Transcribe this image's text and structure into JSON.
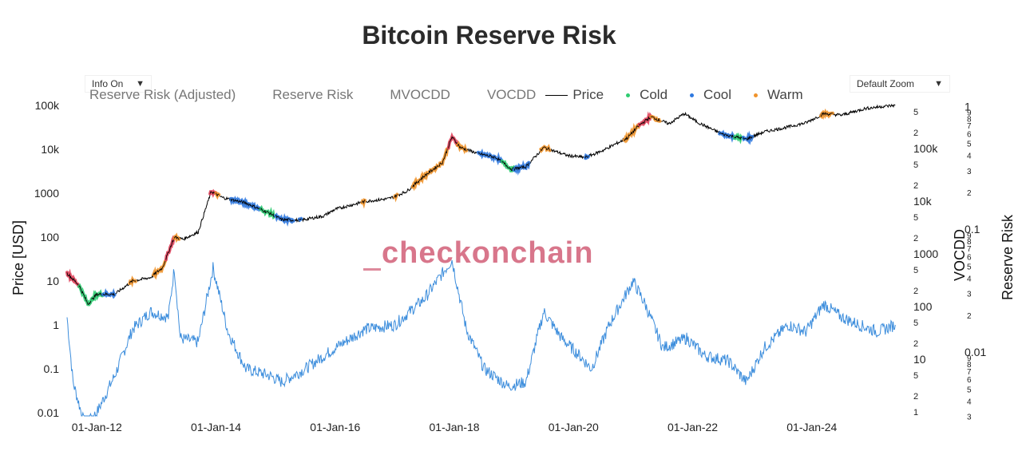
{
  "chart_data": {
    "type": "line",
    "title": "Bitcoin Reserve Risk",
    "y_left_label": "Price [USD]",
    "y_right1_label": "VOCDD",
    "y_right2_label": "Reserve Risk",
    "y_left_scale": "log",
    "y_left_ticks": [
      "0.01",
      "0.1",
      "1",
      "10",
      "100",
      "1000",
      "10k",
      "100k"
    ],
    "y_right1_major_ticks": [
      "10",
      "100",
      "1000",
      "10k",
      "100k"
    ],
    "y_right1_minor_ticks": [
      "1",
      "2",
      "5"
    ],
    "y_right2_major_ticks": [
      "0.01",
      "0.1",
      "1"
    ],
    "x_ticks": [
      "01-Jan-12",
      "01-Jan-14",
      "01-Jan-16",
      "01-Jan-18",
      "01-Jan-20",
      "01-Jan-22",
      "01-Jan-24"
    ],
    "legend_placement": "top",
    "grid": false,
    "series": [
      {
        "name": "Price",
        "color": "#000000",
        "x": [
          2011.5,
          2011.7,
          2011.85,
          2012.0,
          2012.3,
          2012.6,
          2012.9,
          2013.1,
          2013.3,
          2013.45,
          2013.7,
          2013.92,
          2014.1,
          2014.5,
          2014.9,
          2015.1,
          2015.4,
          2015.8,
          2016.0,
          2016.5,
          2016.9,
          2017.2,
          2017.5,
          2017.8,
          2017.96,
          2018.1,
          2018.4,
          2018.7,
          2018.96,
          2019.2,
          2019.5,
          2019.9,
          2020.2,
          2020.5,
          2020.9,
          2021.1,
          2021.3,
          2021.6,
          2021.86,
          2022.1,
          2022.5,
          2022.9,
          2023.2,
          2023.5,
          2023.9,
          2024.2,
          2024.5,
          2024.9,
          2025.2,
          2025.4
        ],
        "y": [
          15,
          8,
          3,
          5,
          5,
          10,
          12,
          20,
          100,
          90,
          130,
          1100,
          800,
          600,
          350,
          250,
          240,
          300,
          430,
          650,
          750,
          1100,
          2500,
          5000,
          19000,
          11000,
          8000,
          6500,
          3500,
          4000,
          11000,
          7200,
          6500,
          9500,
          18000,
          35000,
          55000,
          38000,
          65000,
          40000,
          22000,
          17000,
          25000,
          30000,
          40000,
          65000,
          60000,
          85000,
          95000,
          100000
        ]
      },
      {
        "name": "Reserve Risk (Adjusted)",
        "color": "#3c8ddc",
        "x": [
          2011.5,
          2011.6,
          2011.8,
          2012.0,
          2012.3,
          2012.6,
          2012.9,
          2013.2,
          2013.3,
          2013.4,
          2013.7,
          2013.95,
          2014.2,
          2014.5,
          2014.9,
          2015.1,
          2015.5,
          2016.0,
          2016.5,
          2017.0,
          2017.5,
          2017.96,
          2018.2,
          2018.5,
          2018.9,
          2019.2,
          2019.5,
          2019.8,
          2020.1,
          2020.3,
          2020.6,
          2021.0,
          2021.2,
          2021.5,
          2021.9,
          2022.2,
          2022.6,
          2022.9,
          2023.2,
          2023.6,
          2023.9,
          2024.2,
          2024.5,
          2024.8,
          2025.1,
          2025.4
        ],
        "y": [
          1.5,
          0.05,
          0.005,
          0.01,
          0.07,
          0.8,
          2,
          1.5,
          20,
          0.5,
          0.4,
          20,
          0.7,
          0.1,
          0.07,
          0.05,
          0.1,
          0.3,
          0.8,
          1.0,
          4,
          30,
          0.8,
          0.1,
          0.04,
          0.05,
          2.0,
          0.5,
          0.2,
          0.1,
          1.0,
          10,
          3,
          0.3,
          0.5,
          0.2,
          0.15,
          0.05,
          0.3,
          1.0,
          0.7,
          3,
          1.5,
          1.0,
          0.7,
          1.0
        ]
      }
    ],
    "zones": [
      {
        "name": "Cold",
        "color": "#2ecc71"
      },
      {
        "name": "Cool",
        "color": "#2f79e0"
      },
      {
        "name": "Warm",
        "color": "#f0932b"
      }
    ]
  },
  "legend": {
    "items": [
      {
        "label": "Reserve Risk (Adjusted)"
      },
      {
        "label": "Reserve Risk"
      },
      {
        "label": "MVOCDD"
      },
      {
        "label": "VOCDD"
      },
      {
        "label": "Price"
      },
      {
        "label": "Cold"
      },
      {
        "label": "Cool"
      },
      {
        "label": "Warm"
      }
    ]
  },
  "controls": {
    "info_label": "Info On",
    "zoom_label": "Default Zoom",
    "caret": "▼"
  },
  "watermark": "checkonchain",
  "colors": {
    "price": "#000000",
    "reserve_risk": "#3c8ddc",
    "cold": "#2ecc71",
    "cool": "#2f79e0",
    "warm": "#f0932b",
    "hot": "#e0405a",
    "watermark": "#c83c5a"
  }
}
